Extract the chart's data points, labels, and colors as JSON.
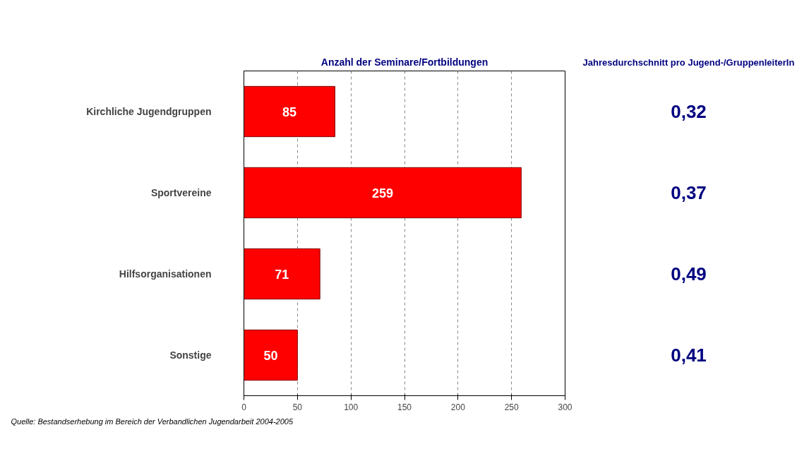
{
  "chart_data": {
    "type": "bar",
    "orientation": "horizontal",
    "title": "Anzahl der Seminare/Fortbildungen",
    "categories": [
      "Kirchliche Jugendgruppen",
      "Sportvereine",
      "Hilfsorganisationen",
      "Sonstige"
    ],
    "values": [
      85,
      259,
      71,
      50
    ],
    "color": "#ff0000",
    "data_labels": true,
    "xlim": [
      0,
      300
    ],
    "xticks": [
      0,
      50,
      100,
      150,
      200,
      250,
      300
    ],
    "grid": "x",
    "annotations": [
      "Jahresdurchschnitt pro Jugend-/GruppenleiterIn",
      "0,32",
      "0,37",
      "0,49",
      "0,41",
      "Quelle: Bestandserhebung im Bereich der Verbandlichen Jugendarbeit 2004-2005"
    ]
  }
}
